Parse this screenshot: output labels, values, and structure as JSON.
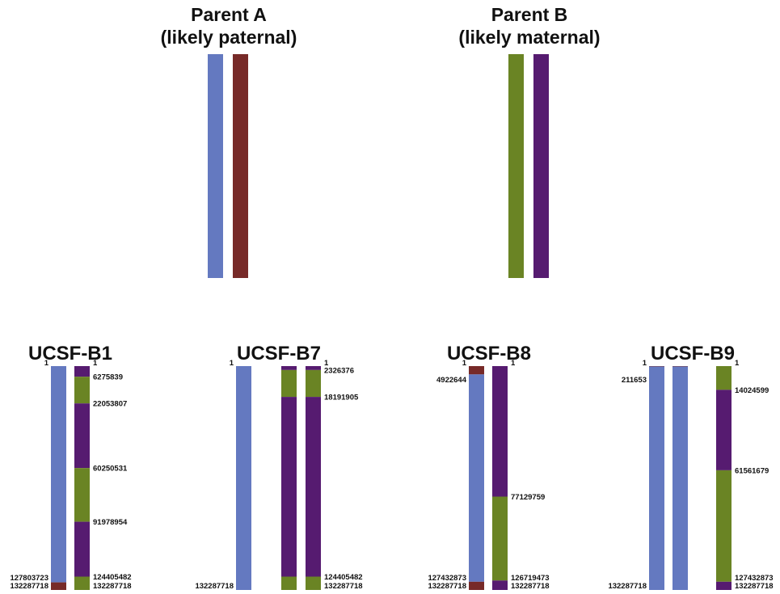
{
  "colors": {
    "parent_a_hap1": "#6479c0",
    "parent_a_hap2": "#772a28",
    "parent_b_hap1": "#6a8424",
    "parent_b_hap2": "#561b70"
  },
  "parents": [
    {
      "title_line1": "Parent A",
      "title_line2": "(likely paternal)",
      "haplotypes": [
        "parent_a_hap1",
        "parent_a_hap2"
      ]
    },
    {
      "title_line1": "Parent B",
      "title_line2": "(likely maternal)",
      "haplotypes": [
        "parent_b_hap1",
        "parent_b_hap2"
      ]
    }
  ],
  "chromosome_length": 132287718,
  "samples": [
    {
      "name": "UCSF-B1",
      "haplotypes": [
        {
          "segments": [
            {
              "start": 1,
              "end": 127803723,
              "color": "parent_a_hap1"
            },
            {
              "start": 127803723,
              "end": 132287718,
              "color": "parent_a_hap2"
            }
          ],
          "labels": [
            "1",
            "127803723",
            "132287718"
          ]
        },
        {
          "segments": [
            {
              "start": 1,
              "end": 6275839,
              "color": "parent_b_hap2"
            },
            {
              "start": 6275839,
              "end": 22053807,
              "color": "parent_b_hap1"
            },
            {
              "start": 22053807,
              "end": 60250531,
              "color": "parent_b_hap2"
            },
            {
              "start": 60250531,
              "end": 91978954,
              "color": "parent_b_hap1"
            },
            {
              "start": 91978954,
              "end": 124405482,
              "color": "parent_b_hap2"
            },
            {
              "start": 124405482,
              "end": 132287718,
              "color": "parent_b_hap1"
            }
          ],
          "labels": [
            "1",
            "6275839",
            "22053807",
            "60250531",
            "91978954",
            "124405482",
            "132287718"
          ]
        }
      ]
    },
    {
      "name": "UCSF-B7",
      "haplotypes": [
        {
          "segments": [
            {
              "start": 1,
              "end": 132287718,
              "color": "parent_a_hap1"
            }
          ],
          "labels": [
            "1",
            "132287718"
          ]
        },
        {
          "segments": [
            {
              "start": 1,
              "end": 2326376,
              "color": "parent_b_hap2"
            },
            {
              "start": 2326376,
              "end": 18191905,
              "color": "parent_b_hap1"
            },
            {
              "start": 18191905,
              "end": 124405482,
              "color": "parent_b_hap2"
            },
            {
              "start": 124405482,
              "end": 132287718,
              "color": "parent_b_hap1"
            }
          ],
          "labels": []
        },
        {
          "segments": [
            {
              "start": 1,
              "end": 2326376,
              "color": "parent_b_hap2"
            },
            {
              "start": 2326376,
              "end": 18191905,
              "color": "parent_b_hap1"
            },
            {
              "start": 18191905,
              "end": 124405482,
              "color": "parent_b_hap2"
            },
            {
              "start": 124405482,
              "end": 132287718,
              "color": "parent_b_hap1"
            }
          ],
          "labels": [
            "1",
            "2326376",
            "18191905",
            "124405482",
            "132287718"
          ]
        }
      ]
    },
    {
      "name": "UCSF-B8",
      "haplotypes": [
        {
          "segments": [
            {
              "start": 1,
              "end": 4922644,
              "color": "parent_a_hap2"
            },
            {
              "start": 4922644,
              "end": 127432873,
              "color": "parent_a_hap1"
            },
            {
              "start": 127432873,
              "end": 132287718,
              "color": "parent_a_hap2"
            }
          ],
          "labels": [
            "1",
            "4922644",
            "127432873",
            "132287718"
          ]
        },
        {
          "segments": [
            {
              "start": 1,
              "end": 77129759,
              "color": "parent_b_hap2"
            },
            {
              "start": 77129759,
              "end": 126719473,
              "color": "parent_b_hap1"
            },
            {
              "start": 126719473,
              "end": 132287718,
              "color": "parent_b_hap2"
            }
          ],
          "labels": [
            "1",
            "77129759",
            "126719473",
            "132287718"
          ]
        }
      ]
    },
    {
      "name": "UCSF-B9",
      "haplotypes": [
        {
          "segments": [
            {
              "start": 1,
              "end": 211653,
              "color": "parent_a_hap2"
            },
            {
              "start": 211653,
              "end": 132287718,
              "color": "parent_a_hap1"
            }
          ],
          "labels": [
            "1",
            "211653",
            "132287718"
          ]
        },
        {
          "segments": [
            {
              "start": 1,
              "end": 211653,
              "color": "parent_a_hap2"
            },
            {
              "start": 211653,
              "end": 132287718,
              "color": "parent_a_hap1"
            }
          ],
          "labels": []
        },
        {
          "segments": [
            {
              "start": 1,
              "end": 14024599,
              "color": "parent_b_hap1"
            },
            {
              "start": 14024599,
              "end": 61561679,
              "color": "parent_b_hap2"
            },
            {
              "start": 61561679,
              "end": 127432873,
              "color": "parent_b_hap1"
            },
            {
              "start": 127432873,
              "end": 132287718,
              "color": "parent_b_hap2"
            }
          ],
          "labels": [
            "1",
            "14024599",
            "61561679",
            "127432873",
            "132287718"
          ]
        }
      ]
    }
  ]
}
